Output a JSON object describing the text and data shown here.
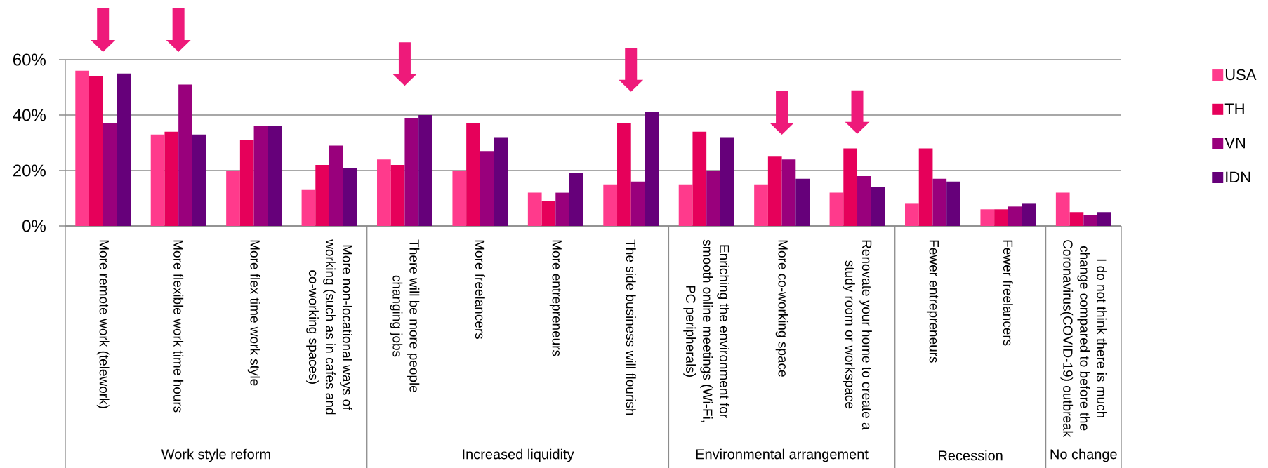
{
  "chart_data": {
    "type": "bar",
    "categories": [
      "More remote work (telework)",
      "More flexible work time hours",
      "More flex time work style",
      "More non-locational ways of working (such as in cafes and co-working spaces)",
      "There will be more people changing jobs",
      "More freelancers",
      "More entrepreneurs",
      "The side business will flourish",
      "Enriching the environment for smooth online meetings (Wi-Fi, PC peripherals)",
      "More co-working space",
      "Renovate your home to create a study room or workspace",
      "Fewer entrepreneurs",
      "Fewer freelancers",
      "I do not think there is much change compared to before the Coronavirus(COVID-19) outbreak"
    ],
    "series": [
      {
        "name": "USA",
        "color": "#ff3a8c",
        "values": [
          56,
          33,
          20,
          13,
          24,
          20,
          12,
          15,
          15,
          15,
          12,
          8,
          6,
          12
        ]
      },
      {
        "name": "TH",
        "color": "#e6005a",
        "values": [
          54,
          34,
          31,
          22,
          22,
          37,
          9,
          37,
          34,
          25,
          28,
          28,
          6,
          5
        ]
      },
      {
        "name": "VN",
        "color": "#99007c",
        "values": [
          37,
          51,
          36,
          29,
          39,
          27,
          12,
          16,
          20,
          24,
          18,
          17,
          7,
          4
        ]
      },
      {
        "name": "IDN",
        "color": "#66007a",
        "values": [
          55,
          33,
          36,
          21,
          40,
          32,
          19,
          41,
          32,
          17,
          14,
          16,
          8,
          5
        ]
      }
    ],
    "ylim": [
      0,
      60
    ],
    "yticks": [
      {
        "value": 0,
        "label": "0%"
      },
      {
        "value": 20,
        "label": "20%"
      },
      {
        "value": 40,
        "label": "40%"
      },
      {
        "value": 60,
        "label": "60%"
      }
    ],
    "grid": "y",
    "legend": "right",
    "annotations": [
      "Work style reform",
      "Increased liquidity",
      "Environmental arrangement",
      "Recession",
      "No change"
    ]
  }
}
